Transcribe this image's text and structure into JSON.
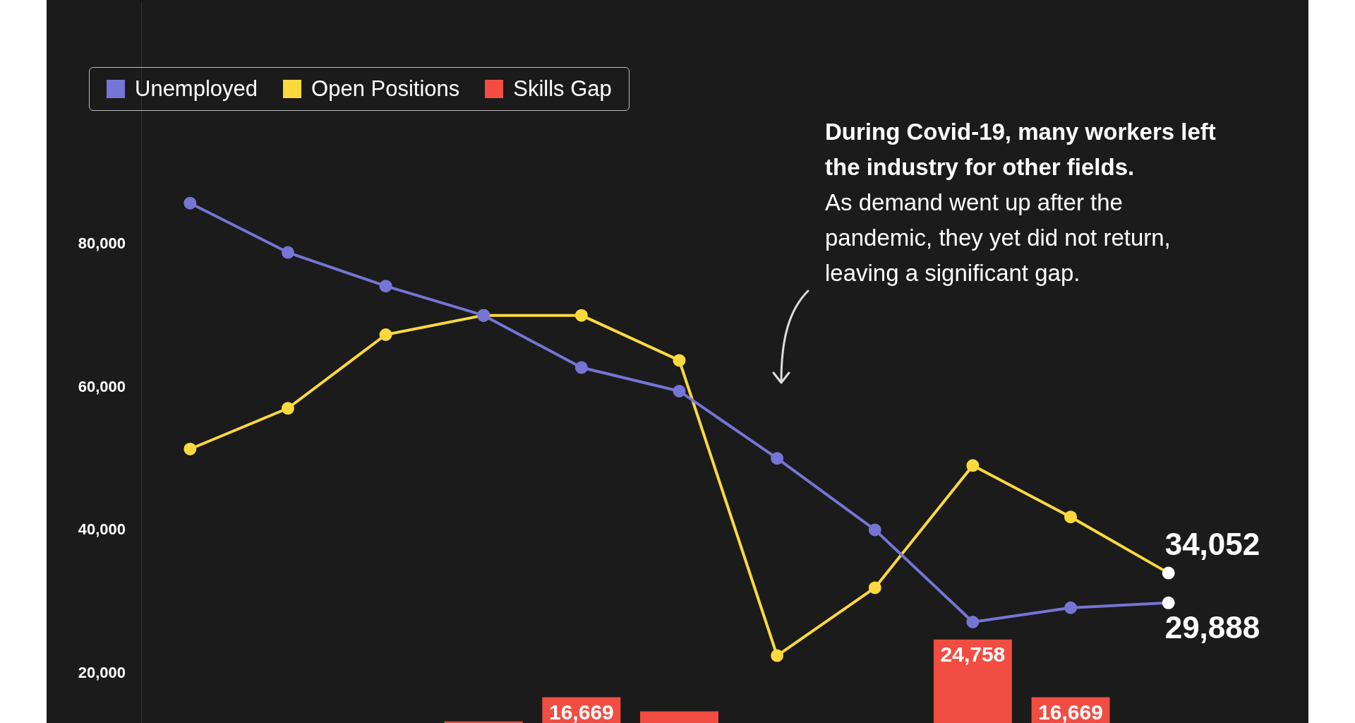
{
  "chart_data": {
    "type": "line",
    "categories": [
      null,
      null,
      null,
      null,
      null,
      null,
      null,
      null,
      null,
      null,
      null
    ],
    "series": [
      {
        "name": "Skills Gap",
        "type": "bar",
        "color": "#f24d42",
        "values": [
          null,
          null,
          null,
          13300,
          16669,
          14700,
          null,
          null,
          24758,
          16669,
          null
        ],
        "value_labels": [
          null,
          null,
          null,
          null,
          "16,669",
          null,
          null,
          null,
          "24,758",
          "16,669",
          null
        ]
      },
      {
        "name": "Unemployed",
        "color": "#7575d6",
        "colors": [
          "#7575d6",
          "#7575d6",
          "#7575d6",
          "#7575d6",
          "#7575d6",
          "#7575d6",
          "#7575d6",
          "#7575d6",
          "#7575d6",
          "#7575d6",
          "#ffffff"
        ],
        "values": [
          85800,
          78900,
          74200,
          70100,
          62800,
          59500,
          50100,
          40100,
          27200,
          29200,
          29888
        ],
        "value_labels": [
          null,
          null,
          null,
          null,
          null,
          null,
          null,
          null,
          null,
          null,
          "29,888"
        ]
      },
      {
        "name": "Open Positions",
        "color": "#fdd93f",
        "colors": [
          "#fdd93f",
          "#fdd93f",
          "#fdd93f",
          "#fdd93f",
          "#fdd93f",
          "#fdd93f",
          "#fdd93f",
          "#fdd93f",
          "#fdd93f",
          "#fdd93f",
          "#ffffff"
        ],
        "values": [
          51400,
          57100,
          67400,
          70100,
          70100,
          63800,
          22500,
          32000,
          49100,
          41900,
          34052
        ],
        "value_labels": [
          null,
          null,
          null,
          null,
          null,
          null,
          null,
          null,
          null,
          null,
          "34,052"
        ]
      }
    ],
    "ylim": [
      12700,
      113900
    ],
    "yticks": [
      {
        "value": 20000,
        "label": "20,000"
      },
      {
        "value": 40000,
        "label": "40,000"
      },
      {
        "value": 60000,
        "label": "60,000"
      },
      {
        "value": 80000,
        "label": "80,000"
      }
    ],
    "grid": false,
    "legend": "top left",
    "marker": "circle",
    "line_style": "solid",
    "tick_labels": "y",
    "annotations": [
      "During Covid-19, many workers left the industry for other fields.",
      "As demand went up after the pandemic, they yet did not return, leaving a significant gap."
    ]
  }
}
